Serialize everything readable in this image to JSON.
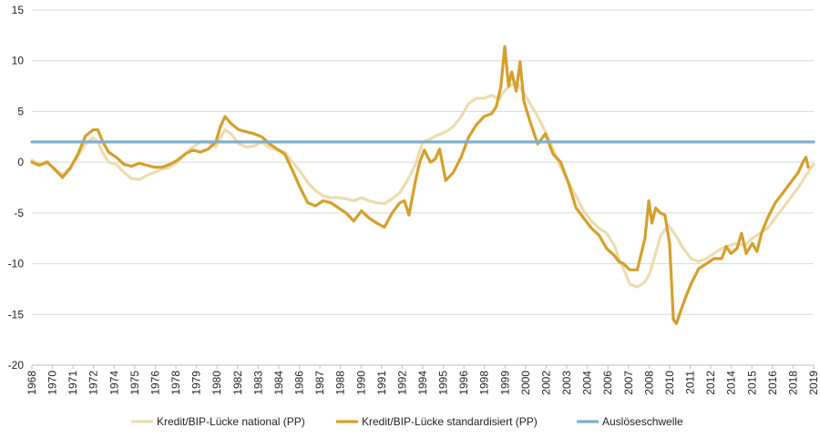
{
  "chart_data": {
    "type": "line",
    "title": "",
    "xlabel": "",
    "ylabel": "",
    "ylim": [
      -20,
      15
    ],
    "xlim": [
      1968,
      2019
    ],
    "yticks": [
      15,
      10,
      5,
      0,
      -5,
      -10,
      -15,
      -20
    ],
    "xtick_labels": [
      "1968",
      "1970",
      "1971",
      "1972",
      "1974",
      "1975",
      "1976",
      "1978",
      "1979",
      "1980",
      "1982",
      "1983",
      "1984",
      "1986",
      "1987",
      "1988",
      "1990",
      "1991",
      "1992",
      "1994",
      "1995",
      "1996",
      "1998",
      "1999",
      "2000",
      "2002",
      "2003",
      "2004",
      "2006",
      "2007",
      "2008",
      "2010",
      "2011",
      "2012",
      "2014",
      "2015",
      "2016",
      "2018",
      "2019"
    ],
    "grid": "horizontal",
    "legend_position": "bottom",
    "series": [
      {
        "name": "Kredit/BIP-Lücke national (PP)",
        "color": "#ecdcaf",
        "x": [
          1968.0,
          1968.5,
          1969.0,
          1969.5,
          1970.0,
          1970.5,
          1971.0,
          1971.5,
          1972.0,
          1972.3,
          1972.6,
          1973.0,
          1973.5,
          1974.0,
          1974.5,
          1975.0,
          1975.5,
          1976.0,
          1976.5,
          1977.0,
          1977.5,
          1978.0,
          1978.5,
          1979.0,
          1979.5,
          1980.0,
          1980.3,
          1980.6,
          1981.0,
          1981.5,
          1982.0,
          1982.5,
          1983.0,
          1983.5,
          1984.0,
          1984.5,
          1985.0,
          1985.5,
          1986.0,
          1986.5,
          1987.0,
          1987.5,
          1988.0,
          1988.5,
          1989.0,
          1989.5,
          1990.0,
          1990.5,
          1991.0,
          1991.5,
          1992.0,
          1992.5,
          1993.0,
          1993.5,
          1994.0,
          1994.5,
          1995.0,
          1995.5,
          1996.0,
          1996.5,
          1997.0,
          1997.5,
          1998.0,
          1998.5,
          1998.8,
          1999.2,
          1999.6,
          2000.0,
          2000.5,
          2001.0,
          2001.5,
          2002.0,
          2002.5,
          2003.0,
          2003.5,
          2004.0,
          2004.5,
          2005.0,
          2005.5,
          2006.0,
          2006.3,
          2006.6,
          2007.0,
          2007.5,
          2008.0,
          2008.3,
          2008.6,
          2009.0,
          2009.5,
          2010.0,
          2010.5,
          2011.0,
          2011.5,
          2012.0,
          2012.5,
          2013.0,
          2013.5,
          2014.0,
          2014.5,
          2015.0,
          2015.5,
          2016.0,
          2016.5,
          2017.0,
          2017.5,
          2018.0,
          2018.5,
          2019.0
        ],
        "values": [
          0.2,
          -0.2,
          0.1,
          -0.8,
          -1.2,
          -0.5,
          0.6,
          1.8,
          2.4,
          2.0,
          1.0,
          0.0,
          -0.2,
          -1.0,
          -1.6,
          -1.7,
          -1.3,
          -1.0,
          -0.7,
          -0.5,
          0.0,
          0.8,
          1.5,
          2.0,
          2.0,
          1.5,
          2.4,
          3.2,
          2.8,
          1.8,
          1.5,
          1.6,
          2.0,
          1.4,
          1.2,
          1.0,
          0.0,
          -0.9,
          -2.0,
          -2.8,
          -3.3,
          -3.5,
          -3.5,
          -3.6,
          -3.8,
          -3.5,
          -3.8,
          -4.0,
          -4.1,
          -3.6,
          -3.0,
          -1.8,
          -0.3,
          2.0,
          2.3,
          2.7,
          3.0,
          3.5,
          4.5,
          5.8,
          6.3,
          6.3,
          6.6,
          6.2,
          7.0,
          7.5,
          7.9,
          7.0,
          5.8,
          4.5,
          3.0,
          1.3,
          -0.5,
          -2.0,
          -3.3,
          -4.8,
          -5.8,
          -6.5,
          -7.0,
          -8.2,
          -9.5,
          -10.5,
          -12.0,
          -12.3,
          -11.8,
          -11.0,
          -9.5,
          -7.3,
          -6.2,
          -7.2,
          -8.5,
          -9.5,
          -9.8,
          -9.5,
          -9.0,
          -8.5,
          -8.2,
          -8.0,
          -8.2,
          -7.5,
          -7.0,
          -6.5,
          -5.5,
          -4.5,
          -3.5,
          -2.5,
          -1.3,
          -0.2
        ]
      },
      {
        "name": "Kredit/BIP-Lücke standardisiert (PP)",
        "color": "#d4a02c",
        "x": [
          1968.0,
          1968.5,
          1969.0,
          1969.5,
          1970.0,
          1970.5,
          1971.0,
          1971.5,
          1972.0,
          1972.3,
          1972.6,
          1973.0,
          1973.5,
          1974.0,
          1974.5,
          1975.0,
          1975.5,
          1976.0,
          1976.5,
          1977.0,
          1977.5,
          1978.0,
          1978.5,
          1979.0,
          1979.5,
          1980.0,
          1980.3,
          1980.6,
          1981.0,
          1981.5,
          1982.0,
          1982.5,
          1983.0,
          1983.5,
          1984.0,
          1984.5,
          1985.0,
          1985.5,
          1986.0,
          1986.5,
          1987.0,
          1987.5,
          1988.0,
          1988.5,
          1989.0,
          1989.5,
          1990.0,
          1990.5,
          1991.0,
          1991.5,
          1992.0,
          1992.3,
          1992.6,
          1993.0,
          1993.3,
          1993.6,
          1994.0,
          1994.3,
          1994.6,
          1995.0,
          1995.5,
          1996.0,
          1996.5,
          1997.0,
          1997.5,
          1998.0,
          1998.3,
          1998.6,
          1998.85,
          1999.1,
          1999.3,
          1999.6,
          1999.85,
          2000.1,
          2000.5,
          2001.0,
          2001.5,
          2002.0,
          2002.5,
          2003.0,
          2003.5,
          2004.0,
          2004.5,
          2005.0,
          2005.5,
          2006.0,
          2006.3,
          2006.6,
          2007.0,
          2007.5,
          2008.0,
          2008.25,
          2008.45,
          2008.7,
          2009.0,
          2009.3,
          2009.6,
          2009.85,
          2010.05,
          2010.25,
          2010.6,
          2011.0,
          2011.5,
          2012.0,
          2012.5,
          2013.0,
          2013.3,
          2013.6,
          2014.0,
          2014.3,
          2014.6,
          2015.0,
          2015.3,
          2015.6,
          2016.0,
          2016.5,
          2017.0,
          2017.5,
          2018.0,
          2018.3,
          2018.5,
          2018.65
        ],
        "values": [
          0.0,
          -0.3,
          0.0,
          -0.7,
          -1.5,
          -0.6,
          0.8,
          2.6,
          3.2,
          3.2,
          2.1,
          1.0,
          0.5,
          -0.2,
          -0.4,
          -0.1,
          -0.3,
          -0.5,
          -0.5,
          -0.2,
          0.2,
          0.8,
          1.2,
          1.0,
          1.3,
          2.0,
          3.5,
          4.5,
          3.8,
          3.2,
          3.0,
          2.8,
          2.5,
          1.8,
          1.3,
          0.8,
          -0.8,
          -2.5,
          -4.0,
          -4.3,
          -3.8,
          -4.0,
          -4.5,
          -5.0,
          -5.8,
          -4.8,
          -5.5,
          -6.0,
          -6.4,
          -5.0,
          -4.0,
          -3.8,
          -5.2,
          -2.0,
          0.0,
          1.2,
          0.0,
          0.3,
          1.3,
          -1.8,
          -1.0,
          0.5,
          2.5,
          3.7,
          4.5,
          4.8,
          5.5,
          7.5,
          11.4,
          7.5,
          8.9,
          7.0,
          9.9,
          6.0,
          4.0,
          1.8,
          2.8,
          0.8,
          0.0,
          -2.0,
          -4.5,
          -5.5,
          -6.5,
          -7.2,
          -8.5,
          -9.2,
          -9.8,
          -10.0,
          -10.6,
          -10.6,
          -7.5,
          -3.8,
          -6.0,
          -4.5,
          -5.0,
          -5.2,
          -8.0,
          -15.5,
          -15.9,
          -15.0,
          -13.5,
          -12.0,
          -10.5,
          -10.0,
          -9.5,
          -9.5,
          -8.3,
          -9.0,
          -8.5,
          -7.0,
          -9.0,
          -8.0,
          -8.8,
          -7.0,
          -5.5,
          -4.0,
          -3.0,
          -2.0,
          -1.0,
          0.0,
          0.5,
          -0.5
        ]
      },
      {
        "name": "Auslöseschwelle",
        "color": "#7fb0cd",
        "x": [
          1968.0,
          2019.0
        ],
        "values": [
          2.0,
          2.0
        ]
      }
    ]
  }
}
